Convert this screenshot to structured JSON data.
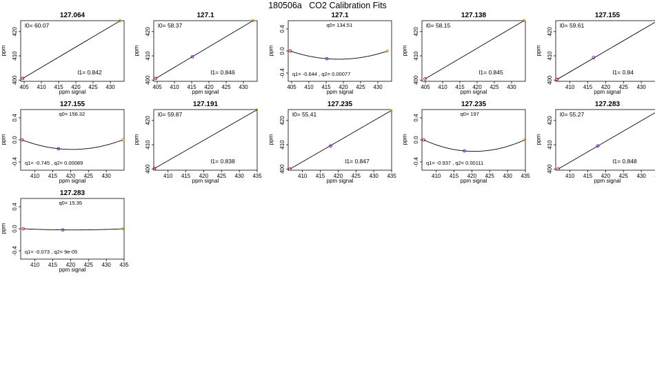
{
  "figure": {
    "title": "180506a   CO2 Calibration Fits"
  },
  "chart_data": [
    {
      "type": "line",
      "title": "127.064",
      "fit": "linear",
      "xlabel": "ppm signal",
      "ylabel": "ppm",
      "xlim": [
        404,
        434
      ],
      "ylim": [
        399.5,
        424.5
      ],
      "xticks": [
        405,
        410,
        415,
        420,
        425,
        430
      ],
      "yticks": [
        400,
        410,
        420
      ],
      "annotations": {
        "top": "l0=  60.07",
        "bottom": "l1=  0.842"
      },
      "coef": {
        "intercept": 60.07,
        "slope": 0.842
      },
      "points": [
        {
          "x": 404.6,
          "y": 400.7,
          "color": "#e00000"
        },
        {
          "x": 432.8,
          "y": 424.4,
          "color": "#e69500"
        }
      ]
    },
    {
      "type": "line",
      "title": "127.1",
      "fit": "linear",
      "xlabel": "ppm signal",
      "ylabel": "ppm",
      "xlim": [
        404,
        434
      ],
      "ylim": [
        399.5,
        424.5
      ],
      "xticks": [
        405,
        410,
        415,
        420,
        425,
        430
      ],
      "yticks": [
        400,
        410,
        420
      ],
      "annotations": {
        "top": "l0=  58.37",
        "bottom": "l1=  0.846"
      },
      "coef": {
        "intercept": 58.37,
        "slope": 0.846
      },
      "points": [
        {
          "x": 404.6,
          "y": 400.7,
          "color": "#e00000"
        },
        {
          "x": 415.2,
          "y": 409.6,
          "color": "#7a00d6"
        },
        {
          "x": 432.8,
          "y": 424.5,
          "color": "#e69500"
        }
      ]
    },
    {
      "type": "line",
      "title": "127.1",
      "fit": "quadratic",
      "xlabel": "ppm signal",
      "ylabel": "ppm",
      "xlim": [
        404,
        434
      ],
      "ylim": [
        -0.55,
        0.55
      ],
      "xticks": [
        405,
        410,
        415,
        420,
        425,
        430
      ],
      "yticks": [
        -0.4,
        0.0,
        0.4
      ],
      "annotations": {
        "top": "q0= 134.51",
        "bottom": "q1= -0.644 , q2= 0.00077"
      },
      "coef": {
        "q0": 134.51,
        "q1": -0.644,
        "q2": 0.00077,
        "vertex": 418.2
      },
      "points": [
        {
          "x": 404.6,
          "y": 0.0,
          "color": "#e00000"
        },
        {
          "x": 415.2,
          "y": -0.14,
          "color": "#7a00d6"
        },
        {
          "x": 432.8,
          "y": 0.0,
          "color": "#e69500"
        }
      ]
    },
    {
      "type": "line",
      "title": "127.138",
      "fit": "linear",
      "xlabel": "ppm signal",
      "ylabel": "ppm",
      "xlim": [
        404,
        434
      ],
      "ylim": [
        399.5,
        424.5
      ],
      "xticks": [
        405,
        410,
        415,
        420,
        425,
        430
      ],
      "yticks": [
        400,
        410,
        420
      ],
      "annotations": {
        "top": "l0=  58.15",
        "bottom": "l1=  0.845"
      },
      "coef": {
        "intercept": 58.15,
        "slope": 0.845
      },
      "points": [
        {
          "x": 404.9,
          "y": 400.5,
          "color": "#e00000"
        },
        {
          "x": 433.6,
          "y": 424.5,
          "color": "#e69500"
        }
      ]
    },
    {
      "type": "line",
      "title": "127.155",
      "fit": "linear",
      "xlabel": "ppm signal",
      "ylabel": "ppm",
      "xlim": [
        406,
        435
      ],
      "ylim": [
        399.5,
        424.5
      ],
      "xticks": [
        410,
        415,
        420,
        425,
        430
      ],
      "yticks": [
        400,
        410,
        420
      ],
      "annotations": {
        "top": "l0=  59.61",
        "bottom": "l1=  0.84"
      },
      "coef": {
        "intercept": 59.61,
        "slope": 0.84
      },
      "points": [
        {
          "x": 406.4,
          "y": 400.3,
          "color": "#e00000"
        },
        {
          "x": 416.6,
          "y": 409.3,
          "color": "#7a00d6"
        },
        {
          "x": 434.6,
          "y": 424.5,
          "color": "#e69500"
        }
      ]
    },
    {
      "type": "line",
      "title": "127.155",
      "fit": "quadratic",
      "xlabel": "ppm signal",
      "ylabel": "ppm",
      "xlim": [
        406,
        435
      ],
      "ylim": [
        -0.55,
        0.55
      ],
      "xticks": [
        410,
        415,
        420,
        425,
        430
      ],
      "yticks": [
        -0.4,
        0.0,
        0.4
      ],
      "annotations": {
        "top": "q0= 156.32",
        "bottom": "q1= -0.745 , q2= 0.00089"
      },
      "coef": {
        "q0": 156.32,
        "q1": -0.745,
        "q2": 0.00089,
        "vertex": 419.7
      },
      "points": [
        {
          "x": 406.4,
          "y": 0.0,
          "color": "#e00000"
        },
        {
          "x": 416.6,
          "y": -0.16,
          "color": "#7a00d6"
        },
        {
          "x": 434.6,
          "y": 0.0,
          "color": "#e69500"
        }
      ]
    },
    {
      "type": "line",
      "title": "127.191",
      "fit": "linear",
      "xlabel": "ppm signal",
      "ylabel": "ppm",
      "xlim": [
        406,
        435
      ],
      "ylim": [
        399.5,
        424.5
      ],
      "xticks": [
        410,
        415,
        420,
        425,
        430,
        435
      ],
      "yticks": [
        400,
        410,
        420
      ],
      "annotations": {
        "top": "l0=  59.87",
        "bottom": "l1=  0.838"
      },
      "coef": {
        "intercept": 59.87,
        "slope": 0.838
      },
      "points": [
        {
          "x": 406.2,
          "y": 400.2,
          "color": "#e00000"
        },
        {
          "x": 434.8,
          "y": 424.3,
          "color": "#e69500"
        }
      ]
    },
    {
      "type": "line",
      "title": "127.235",
      "fit": "linear",
      "xlabel": "ppm signal",
      "ylabel": "ppm",
      "xlim": [
        406,
        435
      ],
      "ylim": [
        399.5,
        424.5
      ],
      "xticks": [
        410,
        415,
        420,
        425,
        430,
        435
      ],
      "yticks": [
        400,
        410,
        420
      ],
      "annotations": {
        "top": "l0=  55.41",
        "bottom": "l1=  0.847"
      },
      "coef": {
        "intercept": 55.41,
        "slope": 0.847
      },
      "points": [
        {
          "x": 406.5,
          "y": 400.0,
          "color": "#e00000"
        },
        {
          "x": 417.9,
          "y": 409.5,
          "color": "#7a00d6"
        },
        {
          "x": 434.8,
          "y": 424.0,
          "color": "#e69500"
        }
      ]
    },
    {
      "type": "line",
      "title": "127.235",
      "fit": "quadratic",
      "xlabel": "ppm signal",
      "ylabel": "ppm",
      "xlim": [
        406,
        435
      ],
      "ylim": [
        -0.55,
        0.55
      ],
      "xticks": [
        410,
        415,
        420,
        425,
        430,
        435
      ],
      "yticks": [
        -0.4,
        0.0,
        0.4
      ],
      "annotations": {
        "top": "q0= 197",
        "bottom": "q1= -0.937 , q2= 0.00111"
      },
      "coef": {
        "q0": 197,
        "q1": -0.937,
        "q2": 0.00111,
        "vertex": 420.6
      },
      "points": [
        {
          "x": 406.5,
          "y": 0.0,
          "color": "#e00000"
        },
        {
          "x": 417.9,
          "y": -0.2,
          "color": "#7a00d6"
        },
        {
          "x": 434.8,
          "y": 0.0,
          "color": "#e69500"
        }
      ]
    },
    {
      "type": "line",
      "title": "127.283",
      "fit": "linear",
      "xlabel": "ppm signal",
      "ylabel": "ppm",
      "xlim": [
        406,
        435
      ],
      "ylim": [
        399.5,
        424.5
      ],
      "xticks": [
        410,
        415,
        420,
        425,
        430,
        435
      ],
      "yticks": [
        400,
        410,
        420
      ],
      "annotations": {
        "top": "l0=  55.27",
        "bottom": "l1=  0.848"
      },
      "coef": {
        "intercept": 55.27,
        "slope": 0.848
      },
      "points": [
        {
          "x": 406.7,
          "y": 400.0,
          "color": "#e00000"
        },
        {
          "x": 417.8,
          "y": 409.5,
          "color": "#7a00d6"
        },
        {
          "x": 434.8,
          "y": 424.0,
          "color": "#e69500"
        }
      ]
    },
    {
      "type": "line",
      "title": "127.283",
      "fit": "quadratic",
      "xlabel": "ppm signal",
      "ylabel": "ppm",
      "xlim": [
        406,
        435
      ],
      "ylim": [
        -0.55,
        0.55
      ],
      "xticks": [
        410,
        415,
        420,
        425,
        430,
        435
      ],
      "yticks": [
        -0.4,
        0.0,
        0.4
      ],
      "annotations": {
        "top": "q0= 15.35",
        "bottom": "q1= -0.073 , q2= 9e-05"
      },
      "coef": {
        "q0": 15.35,
        "q1": -0.073,
        "q2": 9e-05,
        "vertex": 421.1
      },
      "points": [
        {
          "x": 406.7,
          "y": 0.0,
          "color": "#e00000"
        },
        {
          "x": 417.8,
          "y": -0.02,
          "color": "#7a00d6"
        },
        {
          "x": 434.8,
          "y": 0.0,
          "color": "#e69500"
        }
      ]
    }
  ]
}
